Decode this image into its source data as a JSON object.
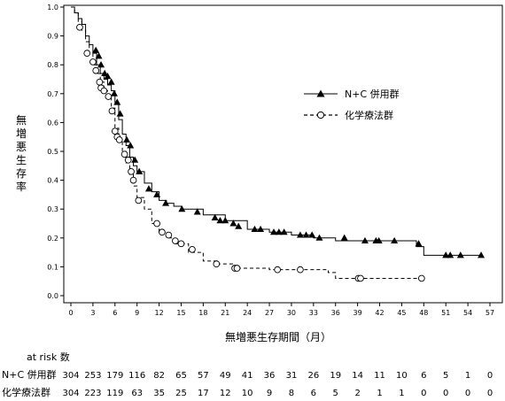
{
  "chart_data": {
    "type": "line",
    "subtype": "kaplan-meier",
    "xlabel": "無増悪生存期間（月）",
    "ylabel": "無増悪生存率",
    "xlim": [
      0,
      57
    ],
    "ylim": [
      0,
      1.0
    ],
    "x_ticks": [
      "0",
      "3",
      "6",
      "9",
      "12",
      "15",
      "18",
      "21",
      "24",
      "27",
      "30",
      "33",
      "36",
      "39",
      "42",
      "45",
      "48",
      "51",
      "54",
      "57"
    ],
    "y_ticks": [
      "0.0",
      "0.1",
      "0.2",
      "0.3",
      "0.4",
      "0.5",
      "0.6",
      "0.7",
      "0.8",
      "0.9",
      "1.0"
    ],
    "grid": false,
    "legend_position": "right",
    "series": [
      {
        "name": "N+C 併用群",
        "line_style": "solid",
        "marker": "filled-triangle",
        "points": [
          [
            0,
            1.0
          ],
          [
            0.5,
            0.98
          ],
          [
            1,
            0.96
          ],
          [
            1.5,
            0.94
          ],
          [
            2,
            0.9
          ],
          [
            2.5,
            0.87
          ],
          [
            3,
            0.84
          ],
          [
            3.5,
            0.8
          ],
          [
            4,
            0.77
          ],
          [
            4.5,
            0.75
          ],
          [
            5,
            0.73
          ],
          [
            5.5,
            0.71
          ],
          [
            6,
            0.67
          ],
          [
            6.5,
            0.61
          ],
          [
            7,
            0.56
          ],
          [
            7.5,
            0.52
          ],
          [
            8,
            0.48
          ],
          [
            8.5,
            0.45
          ],
          [
            9,
            0.43
          ],
          [
            10,
            0.39
          ],
          [
            11,
            0.36
          ],
          [
            12,
            0.33
          ],
          [
            13,
            0.32
          ],
          [
            14,
            0.31
          ],
          [
            15,
            0.3
          ],
          [
            18,
            0.28
          ],
          [
            21,
            0.26
          ],
          [
            24,
            0.23
          ],
          [
            27,
            0.22
          ],
          [
            30,
            0.21
          ],
          [
            33,
            0.2
          ],
          [
            36,
            0.19
          ],
          [
            46,
            0.19
          ],
          [
            47,
            0.17
          ],
          [
            48,
            0.14
          ],
          [
            56,
            0.14
          ]
        ],
        "censor_marks": [
          [
            3.4,
            0.85
          ],
          [
            3.8,
            0.83
          ],
          [
            4.1,
            0.8
          ],
          [
            4.6,
            0.77
          ],
          [
            5.0,
            0.76
          ],
          [
            5.5,
            0.74
          ],
          [
            5.9,
            0.7
          ],
          [
            6.3,
            0.67
          ],
          [
            6.7,
            0.63
          ],
          [
            7.6,
            0.54
          ],
          [
            8.1,
            0.52
          ],
          [
            8.7,
            0.47
          ],
          [
            9.3,
            0.43
          ],
          [
            10.6,
            0.37
          ],
          [
            11.7,
            0.35
          ],
          [
            12.9,
            0.32
          ],
          [
            15.1,
            0.3
          ],
          [
            17.2,
            0.29
          ],
          [
            19.6,
            0.27
          ],
          [
            20.3,
            0.26
          ],
          [
            21.0,
            0.26
          ],
          [
            22.1,
            0.25
          ],
          [
            22.8,
            0.24
          ],
          [
            25.0,
            0.23
          ],
          [
            25.8,
            0.23
          ],
          [
            27.6,
            0.22
          ],
          [
            28.3,
            0.22
          ],
          [
            29.0,
            0.22
          ],
          [
            31.2,
            0.21
          ],
          [
            32.0,
            0.21
          ],
          [
            32.8,
            0.21
          ],
          [
            33.8,
            0.2
          ],
          [
            37.2,
            0.2
          ],
          [
            40.0,
            0.19
          ],
          [
            41.5,
            0.19
          ],
          [
            41.9,
            0.19
          ],
          [
            44.0,
            0.19
          ],
          [
            47.3,
            0.18
          ],
          [
            51.0,
            0.14
          ],
          [
            51.6,
            0.14
          ],
          [
            53.0,
            0.14
          ],
          [
            55.8,
            0.14
          ]
        ]
      },
      {
        "name": "化学療法群",
        "line_style": "dashed",
        "marker": "open-circle",
        "points": [
          [
            0,
            1.0
          ],
          [
            0.5,
            0.98
          ],
          [
            1,
            0.95
          ],
          [
            1.5,
            0.92
          ],
          [
            2,
            0.88
          ],
          [
            2.5,
            0.84
          ],
          [
            3,
            0.8
          ],
          [
            3.5,
            0.77
          ],
          [
            4,
            0.74
          ],
          [
            4.5,
            0.71
          ],
          [
            5,
            0.69
          ],
          [
            5.5,
            0.65
          ],
          [
            6,
            0.58
          ],
          [
            6.5,
            0.54
          ],
          [
            7,
            0.5
          ],
          [
            7.5,
            0.46
          ],
          [
            8,
            0.42
          ],
          [
            8.5,
            0.38
          ],
          [
            9,
            0.34
          ],
          [
            10,
            0.3
          ],
          [
            11,
            0.25
          ],
          [
            12,
            0.22
          ],
          [
            13,
            0.2
          ],
          [
            14,
            0.18
          ],
          [
            16,
            0.15
          ],
          [
            18,
            0.12
          ],
          [
            20,
            0.11
          ],
          [
            22,
            0.095
          ],
          [
            27,
            0.09
          ],
          [
            32,
            0.09
          ],
          [
            35,
            0.08
          ],
          [
            36,
            0.06
          ],
          [
            48,
            0.06
          ]
        ],
        "censor_marks": [
          [
            1.2,
            0.93
          ],
          [
            2.2,
            0.84
          ],
          [
            3.0,
            0.81
          ],
          [
            3.4,
            0.78
          ],
          [
            3.9,
            0.74
          ],
          [
            4.1,
            0.72
          ],
          [
            4.5,
            0.71
          ],
          [
            5.1,
            0.69
          ],
          [
            5.6,
            0.64
          ],
          [
            6.0,
            0.57
          ],
          [
            6.3,
            0.55
          ],
          [
            6.6,
            0.54
          ],
          [
            7.3,
            0.49
          ],
          [
            7.8,
            0.47
          ],
          [
            8.2,
            0.43
          ],
          [
            8.5,
            0.4
          ],
          [
            9.2,
            0.33
          ],
          [
            11.7,
            0.25
          ],
          [
            12.4,
            0.22
          ],
          [
            13.3,
            0.21
          ],
          [
            14.2,
            0.19
          ],
          [
            15.0,
            0.18
          ],
          [
            16.5,
            0.16
          ],
          [
            19.8,
            0.11
          ],
          [
            22.3,
            0.095
          ],
          [
            22.6,
            0.095
          ],
          [
            28.1,
            0.09
          ],
          [
            31.2,
            0.09
          ],
          [
            39.1,
            0.06
          ],
          [
            39.4,
            0.06
          ],
          [
            47.7,
            0.06
          ]
        ]
      }
    ]
  },
  "at_risk": {
    "title": "at risk 数",
    "times": [
      0,
      3,
      6,
      9,
      12,
      15,
      18,
      21,
      24,
      27,
      30,
      33,
      36,
      39,
      42,
      45,
      48,
      51,
      54,
      57
    ],
    "rows": [
      {
        "label": "N+C 併用群",
        "values": [
          "304",
          "253",
          "179",
          "116",
          "82",
          "65",
          "57",
          "49",
          "41",
          "36",
          "31",
          "26",
          "19",
          "14",
          "11",
          "10",
          "6",
          "5",
          "1",
          "0"
        ]
      },
      {
        "label": "化学療法群",
        "values": [
          "304",
          "223",
          "119",
          "63",
          "35",
          "25",
          "17",
          "12",
          "10",
          "9",
          "8",
          "6",
          "5",
          "2",
          "1",
          "1",
          "0",
          "0",
          "0",
          "0"
        ]
      }
    ]
  }
}
